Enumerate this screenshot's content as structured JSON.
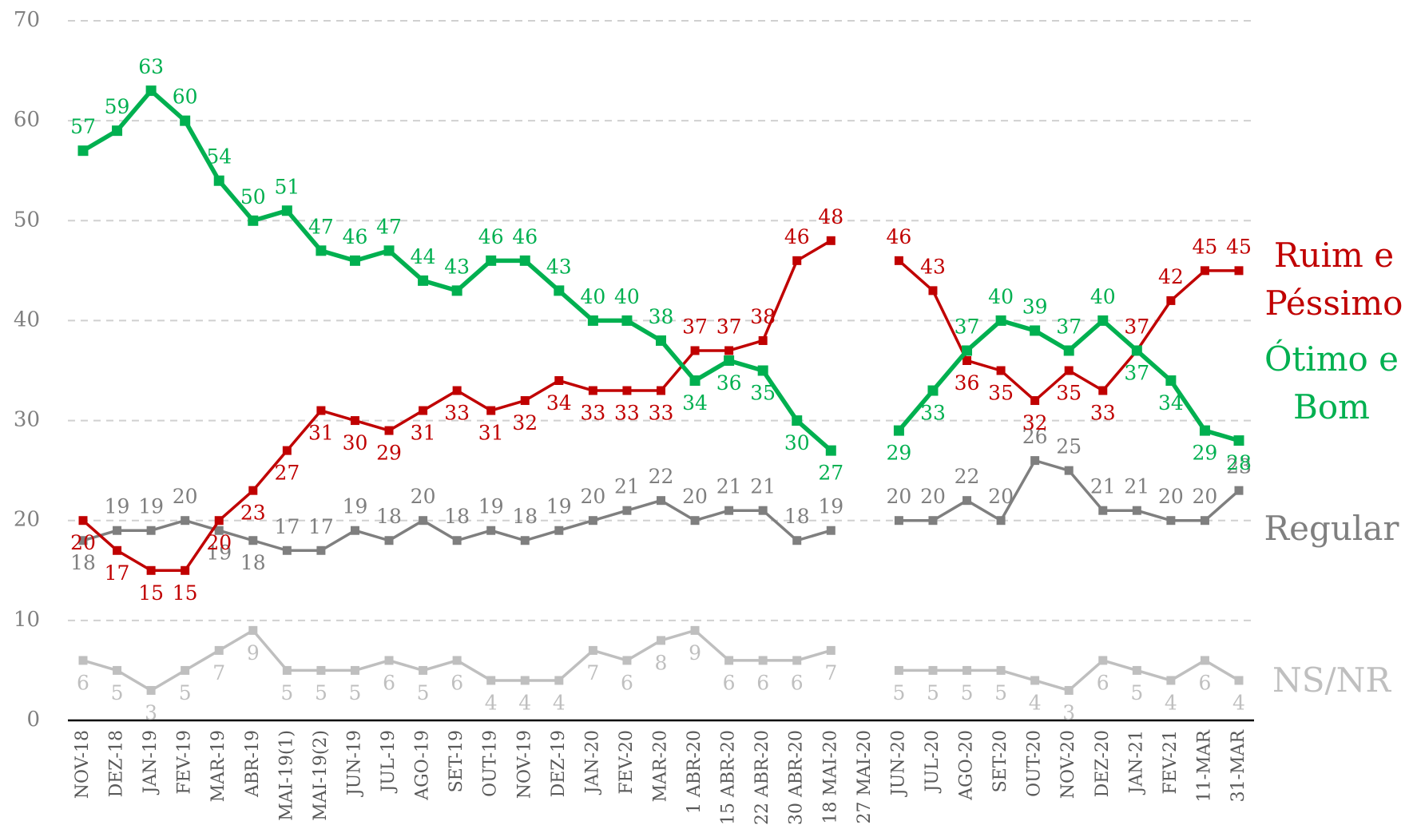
{
  "chart_data": {
    "type": "line",
    "categories": [
      "NOV-18",
      "DEZ-18",
      "JAN-19",
      "FEV-19",
      "MAR-19",
      "ABR-19",
      "MAI-19(1)",
      "MAI-19(2)",
      "JUN-19",
      "JUL-19",
      "AGO-19",
      "SET-19",
      "OUT-19",
      "NOV-19",
      "DEZ-19",
      "JAN-20",
      "FEV-20",
      "MAR-20",
      "1 ABR-20",
      "15 ABR-20",
      "22 ABR-20",
      "30 ABR-20",
      "18 MAI-20",
      "27 MAI-20",
      "JUN-20",
      "JUL-20",
      "AGO-20",
      "SET-20",
      "OUT-20",
      "NOV-20",
      "DEZ-20",
      "JAN-21",
      "FEV-21",
      "11-MAR",
      "31-MAR"
    ],
    "series": [
      {
        "name": "Ruim e Péssimo",
        "color": "#c00000",
        "values": [
          20,
          17,
          15,
          15,
          20,
          23,
          27,
          31,
          30,
          29,
          31,
          33,
          31,
          32,
          34,
          33,
          33,
          33,
          37,
          37,
          38,
          46,
          48,
          null,
          46,
          43,
          36,
          35,
          32,
          35,
          33,
          37,
          42,
          45,
          45
        ]
      },
      {
        "name": "Ótimo e Bom",
        "color": "#00b050",
        "values": [
          57,
          59,
          63,
          60,
          54,
          50,
          51,
          47,
          46,
          47,
          44,
          43,
          46,
          46,
          43,
          40,
          40,
          38,
          34,
          36,
          35,
          30,
          27,
          null,
          29,
          33,
          37,
          40,
          39,
          37,
          40,
          37,
          34,
          29,
          28
        ]
      },
      {
        "name": "Regular",
        "color": "#7f7f7f",
        "values": [
          18,
          19,
          19,
          20,
          19,
          18,
          17,
          17,
          19,
          18,
          20,
          18,
          19,
          18,
          19,
          20,
          21,
          22,
          20,
          21,
          21,
          18,
          19,
          null,
          20,
          20,
          22,
          20,
          26,
          25,
          21,
          21,
          20,
          20,
          23
        ]
      },
      {
        "name": "NS/NR",
        "color": "#bfbfbf",
        "values": [
          6,
          5,
          3,
          5,
          7,
          9,
          5,
          5,
          5,
          6,
          5,
          6,
          4,
          4,
          4,
          7,
          6,
          8,
          9,
          6,
          6,
          6,
          7,
          null,
          5,
          5,
          5,
          5,
          4,
          3,
          6,
          5,
          4,
          6,
          4
        ]
      }
    ],
    "ylim": [
      0,
      70
    ],
    "yticks": [
      0,
      10,
      20,
      30,
      40,
      50,
      60,
      70
    ],
    "grid": true
  }
}
